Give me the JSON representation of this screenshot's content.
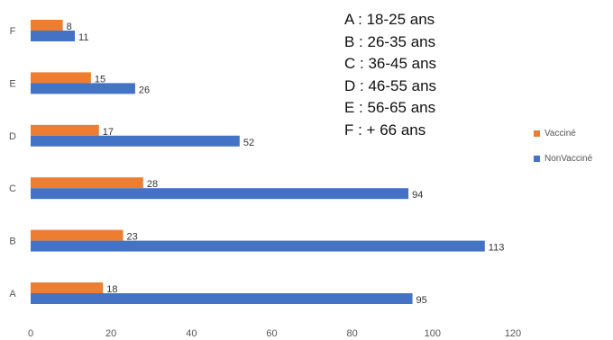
{
  "chart_data": {
    "type": "bar",
    "orientation": "horizontal",
    "categories": [
      "A",
      "B",
      "C",
      "D",
      "E",
      "F"
    ],
    "series": [
      {
        "name": "Vacciné",
        "color": "#ED7D31",
        "values": [
          18,
          23,
          28,
          17,
          15,
          8
        ]
      },
      {
        "name": "NonVacciné",
        "color": "#4472C4",
        "values": [
          95,
          113,
          94,
          52,
          26,
          11
        ]
      }
    ],
    "xlim": [
      0,
      120
    ],
    "x_ticks": [
      0,
      20,
      40,
      60,
      80,
      100,
      120
    ],
    "grid": false,
    "legend_position": "right",
    "annotations": [
      "A : 18-25 ans",
      "B : 26-35 ans",
      "C : 36-45 ans",
      "D : 46-55 ans",
      "E : 56-65 ans",
      "F : + 66 ans"
    ]
  }
}
